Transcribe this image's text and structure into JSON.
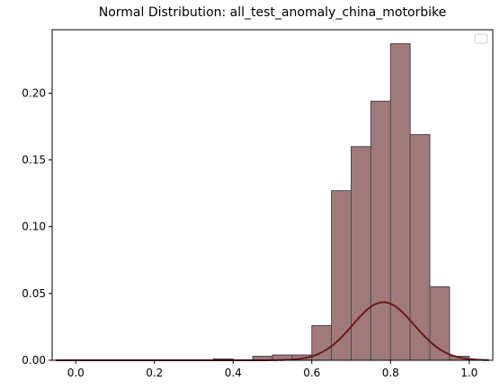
{
  "chart_data": {
    "type": "bar",
    "title": "Normal Distribution: all_test_anomaly_china_motorbike",
    "xlabel": "",
    "ylabel": "",
    "xlim": [
      -0.06,
      1.06
    ],
    "ylim": [
      0,
      0.2475
    ],
    "xticks": [
      0.0,
      0.2,
      0.4,
      0.6,
      0.8,
      1.0
    ],
    "xtick_labels": [
      "0.0",
      "0.2",
      "0.4",
      "0.6",
      "0.8",
      "1.0"
    ],
    "yticks": [
      0.0,
      0.05,
      0.1,
      0.15,
      0.2
    ],
    "ytick_labels": [
      "0.00",
      "0.05",
      "0.10",
      "0.15",
      "0.20"
    ],
    "grid": false,
    "legend": {
      "placement": "upper-right",
      "entries": []
    },
    "histogram": {
      "bin_width": 0.05,
      "bins": [
        {
          "x0": 0.35,
          "x1": 0.4,
          "value": 0.001
        },
        {
          "x0": 0.45,
          "x1": 0.5,
          "value": 0.003
        },
        {
          "x0": 0.5,
          "x1": 0.55,
          "value": 0.004
        },
        {
          "x0": 0.55,
          "x1": 0.6,
          "value": 0.004
        },
        {
          "x0": 0.6,
          "x1": 0.65,
          "value": 0.026
        },
        {
          "x0": 0.65,
          "x1": 0.7,
          "value": 0.127
        },
        {
          "x0": 0.7,
          "x1": 0.75,
          "value": 0.16
        },
        {
          "x0": 0.75,
          "x1": 0.8,
          "value": 0.194
        },
        {
          "x0": 0.8,
          "x1": 0.85,
          "value": 0.237
        },
        {
          "x0": 0.85,
          "x1": 0.9,
          "value": 0.169
        },
        {
          "x0": 0.9,
          "x1": 0.95,
          "value": 0.055
        },
        {
          "x0": 0.95,
          "x1": 1.0,
          "value": 0.003
        }
      ]
    },
    "curve": {
      "mean": 0.782,
      "peak": 0.0435,
      "sigma": 0.0785,
      "x_range": [
        -0.05,
        1.05
      ]
    },
    "colors": {
      "bar_fill": "#a07a7a",
      "bar_edge": "#4a4a4a",
      "curve": "#6b1a1a"
    }
  }
}
